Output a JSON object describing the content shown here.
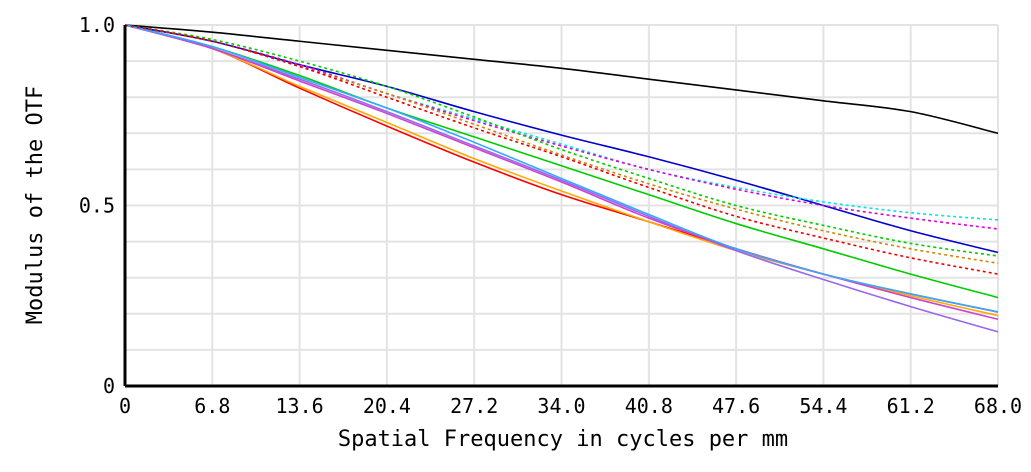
{
  "chart_data": {
    "type": "line",
    "title": "",
    "xlabel": "Spatial Frequency in cycles per mm",
    "ylabel": "Modulus of the OTF",
    "xlim": [
      0,
      68.0
    ],
    "ylim": [
      0,
      1.0
    ],
    "x_ticks": [
      "0",
      "6.8",
      "13.6",
      "20.4",
      "27.2",
      "34.0",
      "40.8",
      "47.6",
      "54.4",
      "61.2",
      "68.0"
    ],
    "y_ticks": [
      "0",
      "0.5",
      "1.0"
    ],
    "grid": true,
    "legend": "none",
    "x": [
      0,
      6.8,
      13.6,
      20.4,
      27.2,
      34.0,
      40.8,
      47.6,
      54.4,
      61.2,
      68.0
    ],
    "series": [
      {
        "color": "#000000",
        "style": "solid",
        "values": [
          1.0,
          0.98,
          0.955,
          0.93,
          0.905,
          0.88,
          0.85,
          0.82,
          0.79,
          0.76,
          0.7
        ]
      },
      {
        "color": "#0000cc",
        "style": "solid",
        "values": [
          1.0,
          0.955,
          0.89,
          0.83,
          0.76,
          0.695,
          0.635,
          0.57,
          0.5,
          0.43,
          0.37
        ]
      },
      {
        "color": "#00cc00",
        "style": "solid",
        "values": [
          1.0,
          0.94,
          0.86,
          0.77,
          0.69,
          0.61,
          0.53,
          0.45,
          0.38,
          0.31,
          0.245
        ]
      },
      {
        "color": "#ff0000",
        "style": "solid",
        "values": [
          1.0,
          0.935,
          0.825,
          0.72,
          0.62,
          0.53,
          0.455,
          0.38,
          0.31,
          0.255,
          0.205
        ]
      },
      {
        "color": "#ffaa00",
        "style": "solid",
        "values": [
          1.0,
          0.935,
          0.83,
          0.73,
          0.63,
          0.54,
          0.455,
          0.375,
          0.31,
          0.25,
          0.195
        ]
      },
      {
        "color": "#9966ee",
        "style": "solid",
        "values": [
          1.0,
          0.935,
          0.85,
          0.76,
          0.665,
          0.57,
          0.47,
          0.375,
          0.295,
          0.22,
          0.15
        ]
      },
      {
        "color": "#cc44cc",
        "style": "solid",
        "values": [
          1.0,
          0.935,
          0.845,
          0.755,
          0.66,
          0.565,
          0.465,
          0.38,
          0.31,
          0.245,
          0.185
        ]
      },
      {
        "color": "#33aaff",
        "style": "solid",
        "values": [
          1.0,
          0.94,
          0.855,
          0.77,
          0.675,
          0.575,
          0.475,
          0.38,
          0.31,
          0.255,
          0.205
        ]
      },
      {
        "color": "#00e5e5",
        "style": "dotted",
        "values": [
          1.0,
          0.955,
          0.89,
          0.81,
          0.74,
          0.67,
          0.6,
          0.55,
          0.51,
          0.48,
          0.46
        ]
      },
      {
        "color": "#dd00dd",
        "style": "dotted",
        "values": [
          1.0,
          0.955,
          0.89,
          0.81,
          0.735,
          0.665,
          0.6,
          0.545,
          0.5,
          0.465,
          0.435
        ]
      },
      {
        "color": "#00cc00",
        "style": "dotted",
        "values": [
          1.0,
          0.96,
          0.9,
          0.83,
          0.745,
          0.655,
          0.575,
          0.5,
          0.445,
          0.395,
          0.36
        ]
      },
      {
        "color": "#cc8800",
        "style": "dotted",
        "values": [
          1.0,
          0.955,
          0.885,
          0.81,
          0.725,
          0.64,
          0.56,
          0.49,
          0.43,
          0.38,
          0.34
        ]
      },
      {
        "color": "#ee0000",
        "style": "dotted",
        "values": [
          1.0,
          0.955,
          0.885,
          0.8,
          0.715,
          0.635,
          0.55,
          0.47,
          0.41,
          0.355,
          0.31
        ]
      }
    ]
  }
}
